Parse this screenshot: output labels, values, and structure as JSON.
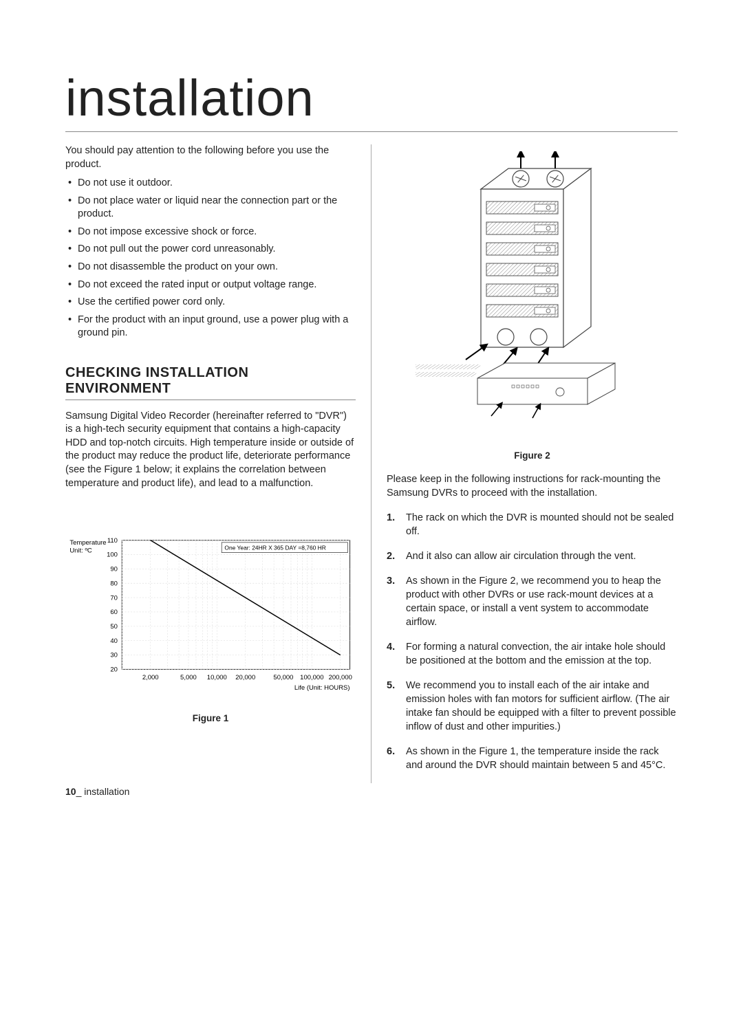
{
  "page_title": "installation",
  "intro": "You should pay attention to the following before you use the product.",
  "bullets": [
    "Do not use it outdoor.",
    "Do not place water or liquid near the connection part or the product.",
    "Do not impose excessive shock or force.",
    "Do not pull out the power cord unreasonably.",
    "Do not disassemble the product on your own.",
    "Do not exceed the rated input or output voltage range.",
    "Use the certified power cord only.",
    "For the product with an input ground, use a power plug with a ground pin."
  ],
  "section_heading": "CHECKING INSTALLATION ENVIRONMENT",
  "section_para": "Samsung Digital Video Recorder (hereinafter referred to \"DVR\") is a high-tech security equipment that contains a high-capacity HDD and top-notch circuits. High temperature inside or outside of the product may reduce the product life, deteriorate performance (see the Figure 1 below; it explains the correlation between temperature and product life), and lead to a malfunction.",
  "chart": {
    "type": "line",
    "y_axis_label": "Temperature Unit: ºC",
    "x_axis_label": "Life (Unit: HOURS)",
    "annotation": "One Year: 24HR X 365 DAY =8,760 HR",
    "x_ticks": [
      "2,000",
      "5,000",
      "10,000",
      "20,000",
      "50,000",
      "100,000",
      "200,000"
    ],
    "y_ticks": [
      "20",
      "30",
      "40",
      "50",
      "60",
      "70",
      "80",
      "90",
      "100",
      "110"
    ],
    "x_scale": "log",
    "xlim_log": [
      3.0,
      5.4
    ],
    "ylim": [
      20,
      110
    ],
    "line_color": "#000000",
    "line_width": 1.4,
    "grid_color": "#e0e0e0",
    "border_color": "#333333",
    "bg_color": "#ffffff",
    "label_fontsize": 9,
    "series": [
      {
        "x_log": 3.3,
        "y": 110
      },
      {
        "x_log": 5.3,
        "y": 30
      }
    ],
    "minor_grid_stops_log": [
      3.0,
      3.3,
      3.48,
      3.6,
      3.7,
      3.78,
      3.85,
      3.9,
      3.95,
      4.0,
      4.3,
      4.48,
      4.6,
      4.7,
      4.78,
      4.85,
      4.9,
      4.95,
      5.0,
      5.3
    ]
  },
  "figure1_caption": "Figure 1",
  "figure2_caption": "Figure 2",
  "rack_diagram": {
    "stroke": "#444444",
    "fill": "#ffffff",
    "hatch": "#888888"
  },
  "right_intro": "Please keep in the following instructions for rack-mounting the Samsung DVRs to proceed with the installation.",
  "numbered": [
    "The rack on which the DVR is mounted should not be sealed off.",
    "And it also can allow air circulation through the vent.",
    "As shown in the Figure 2, we recommend you to heap the product with other DVRs or use rack-mount devices at a certain space, or install a vent system to accommodate airflow.",
    "For forming a natural convection, the air intake hole should be positioned at the bottom and the emission at the top.",
    "We recommend you to install each of the air intake and emission holes with fan motors for sufficient airflow. (The air intake fan should be equipped with a filter to prevent possible inflow of dust and other impurities.)",
    "As shown in the Figure 1, the temperature inside the rack and around the DVR should maintain between 5 and 45°C."
  ],
  "footer": {
    "page_num": "10",
    "section": "installation",
    "sep": "_ "
  }
}
